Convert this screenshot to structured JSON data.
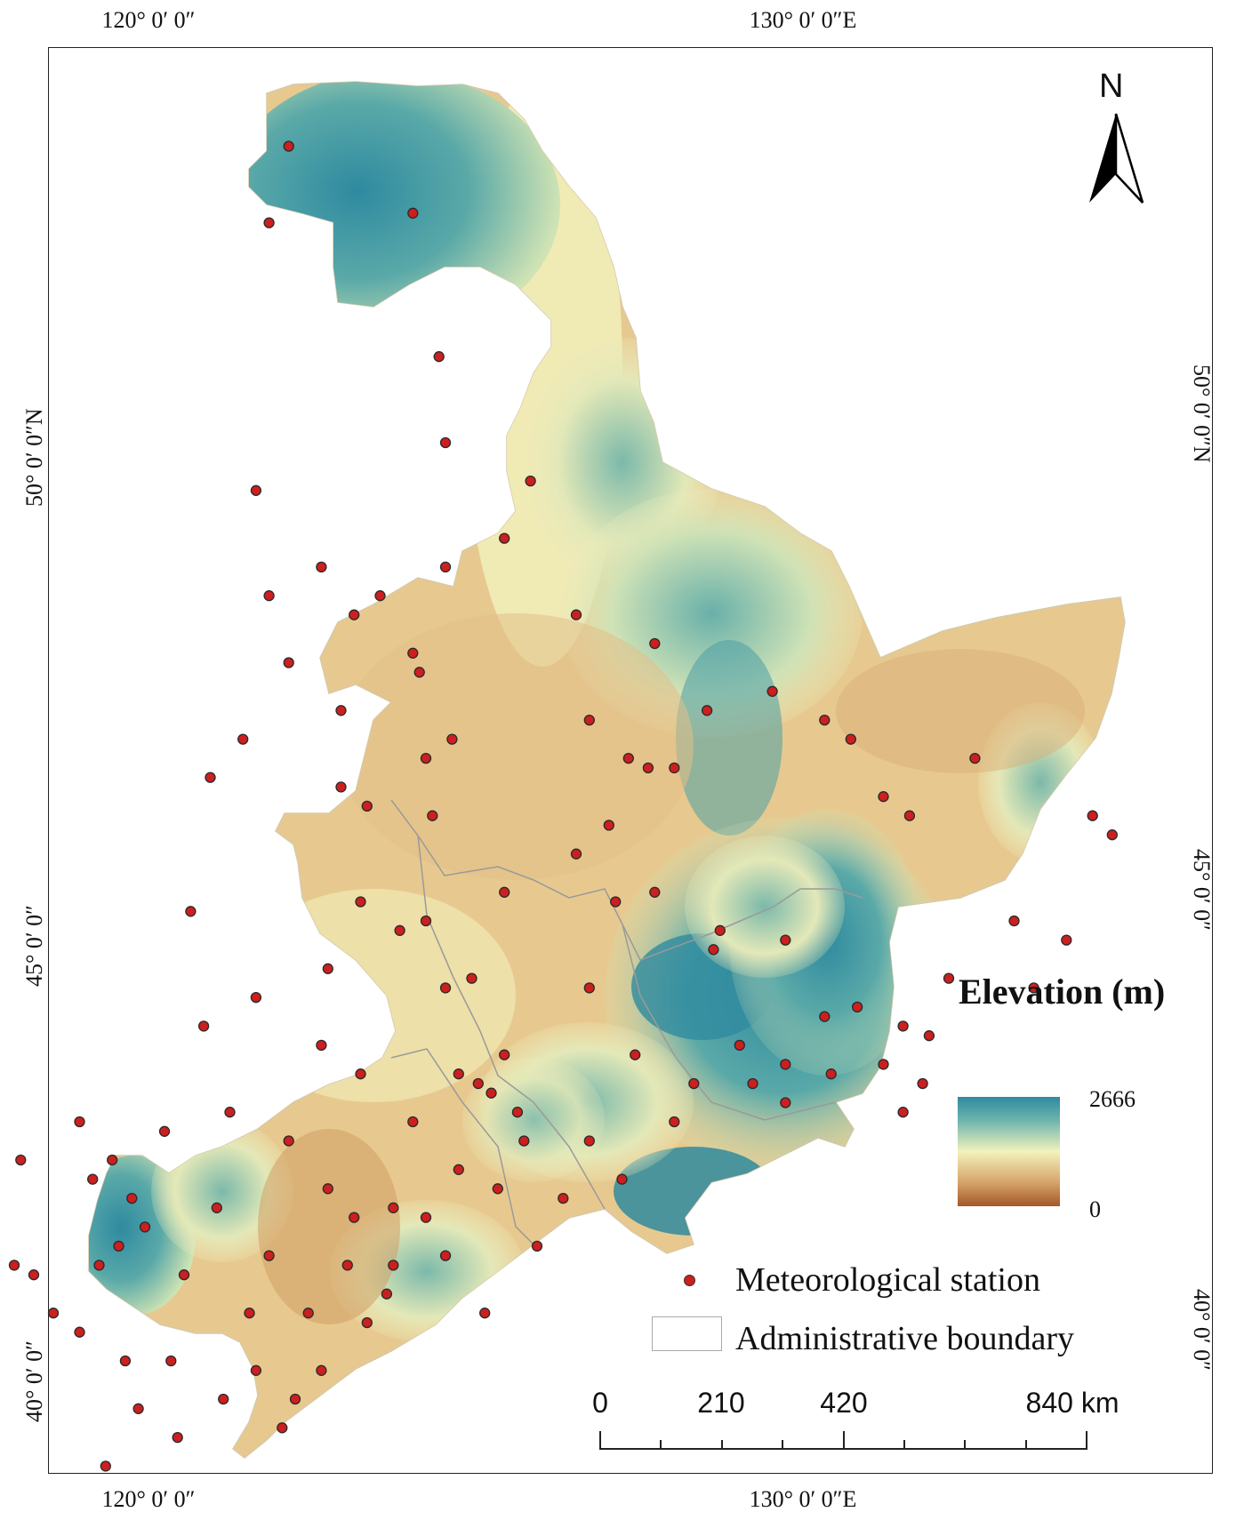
{
  "graticule": {
    "top": [
      "120° 0′ 0″",
      "130° 0′ 0″E"
    ],
    "bottom": [
      "120° 0′ 0″",
      "130° 0′ 0″E"
    ],
    "left": [
      "50° 0′ 0″N",
      "45° 0′ 0″",
      "40° 0′ 0″"
    ],
    "right": [
      "50° 0′ 0″N",
      "45° 0′ 0″",
      "40° 0′ 0″"
    ]
  },
  "north_arrow": {
    "label": "N"
  },
  "legend": {
    "title": "Elevation (m)",
    "max": "2666",
    "min": "0",
    "colors": {
      "high": "#2e8aa0",
      "mid": "#f3f2bd",
      "low": "#a5572a"
    },
    "station_label": "Meteorological station",
    "boundary_label": "Administrative boundary"
  },
  "scale_bar": {
    "labels": [
      "0",
      "210",
      "420",
      "840 km"
    ]
  },
  "stations": {
    "color": "#cc1f1f",
    "coords": [
      [
        121.9,
        52.7
      ],
      [
        121.6,
        51.9
      ],
      [
        123.8,
        52.0
      ],
      [
        124.2,
        50.5
      ],
      [
        124.3,
        49.6
      ],
      [
        121.4,
        49.1
      ],
      [
        123.3,
        48.0
      ],
      [
        122.9,
        47.8
      ],
      [
        121.9,
        47.3
      ],
      [
        122.7,
        46.8
      ],
      [
        120.7,
        46.1
      ],
      [
        123.9,
        47.2
      ],
      [
        121.2,
        46.5
      ],
      [
        122.7,
        46.0
      ],
      [
        123.1,
        45.8
      ],
      [
        124.0,
        46.3
      ],
      [
        124.4,
        46.5
      ],
      [
        126.5,
        46.7
      ],
      [
        127.1,
        46.3
      ],
      [
        127.8,
        46.2
      ],
      [
        126.8,
        45.6
      ],
      [
        127.5,
        44.9
      ],
      [
        128.5,
        44.5
      ],
      [
        129.5,
        44.4
      ],
      [
        128.8,
        43.3
      ],
      [
        129.5,
        43.1
      ],
      [
        130.1,
        43.6
      ],
      [
        130.6,
        43.7
      ],
      [
        131.3,
        43.5
      ],
      [
        132.0,
        44.0
      ],
      [
        133.3,
        43.9
      ],
      [
        133.0,
        44.6
      ],
      [
        133.8,
        44.4
      ],
      [
        134.2,
        45.7
      ],
      [
        134.5,
        45.5
      ],
      [
        131.4,
        45.7
      ],
      [
        131.0,
        45.9
      ],
      [
        132.4,
        46.3
      ],
      [
        130.5,
        46.5
      ],
      [
        130.1,
        46.7
      ],
      [
        129.3,
        47.0
      ],
      [
        128.3,
        46.8
      ],
      [
        127.4,
        46.2
      ],
      [
        125.2,
        48.6
      ],
      [
        126.3,
        47.8
      ],
      [
        127.5,
        47.5
      ],
      [
        125.6,
        49.2
      ],
      [
        124.3,
        48.3
      ],
      [
        123.8,
        47.4
      ],
      [
        122.4,
        48.3
      ],
      [
        121.6,
        48.0
      ],
      [
        120.4,
        44.7
      ],
      [
        120.6,
        43.5
      ],
      [
        119.3,
        41.2
      ],
      [
        119.2,
        42.1
      ],
      [
        118.9,
        41.9
      ],
      [
        119.7,
        41.4
      ],
      [
        120.3,
        40.9
      ],
      [
        120.8,
        41.6
      ],
      [
        121.6,
        41.1
      ],
      [
        122.2,
        40.5
      ],
      [
        122.9,
        41.5
      ],
      [
        123.5,
        41.0
      ],
      [
        124.3,
        41.1
      ],
      [
        124.9,
        40.5
      ],
      [
        125.4,
        42.6
      ],
      [
        126.5,
        43.9
      ],
      [
        127.2,
        43.2
      ],
      [
        128.1,
        42.9
      ],
      [
        129.0,
        42.9
      ],
      [
        129.5,
        42.7
      ],
      [
        131.0,
        43.1
      ],
      [
        131.3,
        42.6
      ],
      [
        131.6,
        42.9
      ],
      [
        131.7,
        43.4
      ],
      [
        130.2,
        43.0
      ],
      [
        128.4,
        44.3
      ],
      [
        126.9,
        44.8
      ],
      [
        126.3,
        45.3
      ],
      [
        125.2,
        44.9
      ],
      [
        124.7,
        44.0
      ],
      [
        124.3,
        43.9
      ],
      [
        123.6,
        44.5
      ],
      [
        122.5,
        44.1
      ],
      [
        121.4,
        43.8
      ],
      [
        122.4,
        43.3
      ],
      [
        123.0,
        43.0
      ],
      [
        123.8,
        42.5
      ],
      [
        124.5,
        43.0
      ],
      [
        125.0,
        42.8
      ],
      [
        125.2,
        43.2
      ],
      [
        125.5,
        42.3
      ],
      [
        125.1,
        41.8
      ],
      [
        124.5,
        42.0
      ],
      [
        123.5,
        41.6
      ],
      [
        122.5,
        41.8
      ],
      [
        121.9,
        42.3
      ],
      [
        121.0,
        42.6
      ],
      [
        120.0,
        42.4
      ],
      [
        119.5,
        41.7
      ],
      [
        119.0,
        41.0
      ],
      [
        118.7,
        42.5
      ],
      [
        118.0,
        40.9
      ],
      [
        117.7,
        41.0
      ],
      [
        117.3,
        41.6
      ],
      [
        117.8,
        42.1
      ],
      [
        118.3,
        40.5
      ],
      [
        118.7,
        40.3
      ],
      [
        119.4,
        40.0
      ],
      [
        120.1,
        40.0
      ],
      [
        120.9,
        39.6
      ],
      [
        121.4,
        39.9
      ],
      [
        122.4,
        39.9
      ],
      [
        123.1,
        40.4
      ],
      [
        122.0,
        39.6
      ],
      [
        121.3,
        40.5
      ],
      [
        120.2,
        39.2
      ],
      [
        119.1,
        38.9
      ],
      [
        119.6,
        39.5
      ],
      [
        121.8,
        39.3
      ],
      [
        122.8,
        41.0
      ],
      [
        123.4,
        40.7
      ],
      [
        124.0,
        41.5
      ],
      [
        124.8,
        42.9
      ],
      [
        125.7,
        41.2
      ],
      [
        126.1,
        41.7
      ],
      [
        126.5,
        42.3
      ],
      [
        127.0,
        41.9
      ],
      [
        127.8,
        42.5
      ],
      [
        124.1,
        45.7
      ],
      [
        124.0,
        44.6
      ],
      [
        123.0,
        44.8
      ]
    ]
  }
}
